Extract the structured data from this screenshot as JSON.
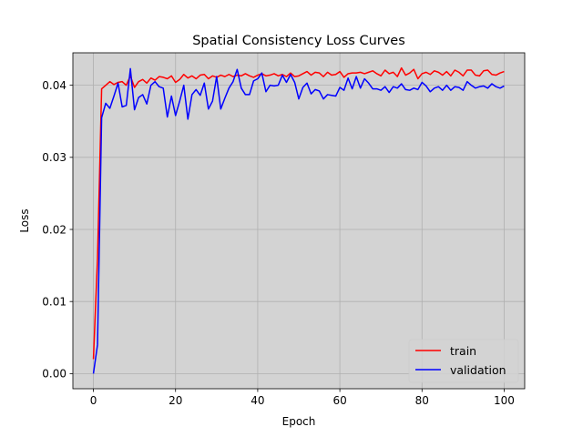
{
  "chart_data": {
    "type": "line",
    "title": "Spatial Consistency Loss Curves",
    "xlabel": "Epoch",
    "ylabel": "Loss",
    "xlim": [
      -5,
      105
    ],
    "ylim": [
      -0.0021,
      0.0445
    ],
    "xticks": [
      0,
      20,
      40,
      60,
      80,
      100
    ],
    "yticks": [
      0.0,
      0.01,
      0.02,
      0.03,
      0.04
    ],
    "xtick_labels": [
      "0",
      "20",
      "40",
      "60",
      "80",
      "100"
    ],
    "ytick_labels": [
      "0.00",
      "0.01",
      "0.02",
      "0.03",
      "0.04"
    ],
    "grid": true,
    "background": "#d3d3d3",
    "legend": "lower-right",
    "series": [
      {
        "name": "train",
        "color": "#ff0000",
        "x": [
          0,
          1,
          2,
          3,
          4,
          5,
          6,
          7,
          8,
          9,
          10,
          11,
          12,
          13,
          14,
          15,
          16,
          17,
          18,
          19,
          20,
          21,
          22,
          23,
          24,
          25,
          26,
          27,
          28,
          29,
          30,
          31,
          32,
          33,
          34,
          35,
          36,
          37,
          38,
          39,
          40,
          41,
          42,
          43,
          44,
          45,
          46,
          47,
          48,
          49,
          50,
          51,
          52,
          53,
          54,
          55,
          56,
          57,
          58,
          59,
          60,
          61,
          62,
          63,
          64,
          65,
          66,
          67,
          68,
          69,
          70,
          71,
          72,
          73,
          74,
          75,
          76,
          77,
          78,
          79,
          80,
          81,
          82,
          83,
          84,
          85,
          86,
          87,
          88,
          89,
          90,
          91,
          92,
          93,
          94,
          95,
          96,
          97,
          98,
          99,
          100
        ],
        "values": [
          0.002,
          0.016,
          0.0395,
          0.04,
          0.0405,
          0.0401,
          0.0404,
          0.0405,
          0.04,
          0.0413,
          0.0397,
          0.0405,
          0.0408,
          0.0403,
          0.041,
          0.0407,
          0.0412,
          0.0411,
          0.0409,
          0.0413,
          0.0404,
          0.0408,
          0.0415,
          0.041,
          0.0413,
          0.0409,
          0.0414,
          0.0415,
          0.0409,
          0.0413,
          0.0411,
          0.0414,
          0.0412,
          0.0415,
          0.0412,
          0.0414,
          0.0413,
          0.0416,
          0.0413,
          0.0411,
          0.0414,
          0.0416,
          0.0413,
          0.0414,
          0.0416,
          0.0413,
          0.0415,
          0.0412,
          0.0417,
          0.0412,
          0.0413,
          0.0416,
          0.0419,
          0.0414,
          0.0418,
          0.0417,
          0.0412,
          0.0418,
          0.0414,
          0.0415,
          0.0419,
          0.0411,
          0.0416,
          0.0417,
          0.0417,
          0.0418,
          0.0416,
          0.0418,
          0.042,
          0.0416,
          0.0413,
          0.0421,
          0.0416,
          0.0418,
          0.0412,
          0.0424,
          0.0414,
          0.0417,
          0.0422,
          0.0409,
          0.0416,
          0.0418,
          0.0415,
          0.042,
          0.0418,
          0.0414,
          0.0419,
          0.0413,
          0.0421,
          0.0418,
          0.0413,
          0.0421,
          0.0421,
          0.0414,
          0.0413,
          0.042,
          0.0421,
          0.0415,
          0.0414,
          0.0417,
          0.0419
        ]
      },
      {
        "name": "validation",
        "color": "#0000ff",
        "x": [
          0,
          1,
          2,
          3,
          4,
          5,
          6,
          7,
          8,
          9,
          10,
          11,
          12,
          13,
          14,
          15,
          16,
          17,
          18,
          19,
          20,
          21,
          22,
          23,
          24,
          25,
          26,
          27,
          28,
          29,
          30,
          31,
          32,
          33,
          34,
          35,
          36,
          37,
          38,
          39,
          40,
          41,
          42,
          43,
          44,
          45,
          46,
          47,
          48,
          49,
          50,
          51,
          52,
          53,
          54,
          55,
          56,
          57,
          58,
          59,
          60,
          61,
          62,
          63,
          64,
          65,
          66,
          67,
          68,
          69,
          70,
          71,
          72,
          73,
          74,
          75,
          76,
          77,
          78,
          79,
          80,
          81,
          82,
          83,
          84,
          85,
          86,
          87,
          88,
          89,
          90,
          91,
          92,
          93,
          94,
          95,
          96,
          97,
          98,
          99,
          100
        ],
        "values": [
          0.0,
          0.004,
          0.0355,
          0.0375,
          0.0368,
          0.0385,
          0.0403,
          0.037,
          0.0372,
          0.0423,
          0.0366,
          0.0383,
          0.0387,
          0.0374,
          0.04,
          0.0405,
          0.0398,
          0.0396,
          0.0356,
          0.0385,
          0.0358,
          0.0378,
          0.04,
          0.0353,
          0.0387,
          0.0394,
          0.0386,
          0.0403,
          0.0367,
          0.0378,
          0.0412,
          0.0367,
          0.0382,
          0.0396,
          0.0405,
          0.0422,
          0.0396,
          0.0387,
          0.0387,
          0.0406,
          0.0409,
          0.0417,
          0.0391,
          0.04,
          0.0399,
          0.04,
          0.0414,
          0.0404,
          0.0415,
          0.0404,
          0.0381,
          0.0397,
          0.0403,
          0.0388,
          0.0394,
          0.0392,
          0.0381,
          0.0387,
          0.0386,
          0.0385,
          0.0397,
          0.0393,
          0.041,
          0.0395,
          0.0412,
          0.0396,
          0.0409,
          0.0403,
          0.0395,
          0.0395,
          0.0393,
          0.0398,
          0.039,
          0.0398,
          0.0396,
          0.0402,
          0.0394,
          0.0393,
          0.0396,
          0.0394,
          0.0404,
          0.0399,
          0.0391,
          0.0396,
          0.0398,
          0.0393,
          0.04,
          0.0393,
          0.0398,
          0.0397,
          0.0393,
          0.0405,
          0.04,
          0.0396,
          0.0398,
          0.0399,
          0.0396,
          0.0402,
          0.0398,
          0.0396,
          0.0399
        ]
      }
    ]
  }
}
